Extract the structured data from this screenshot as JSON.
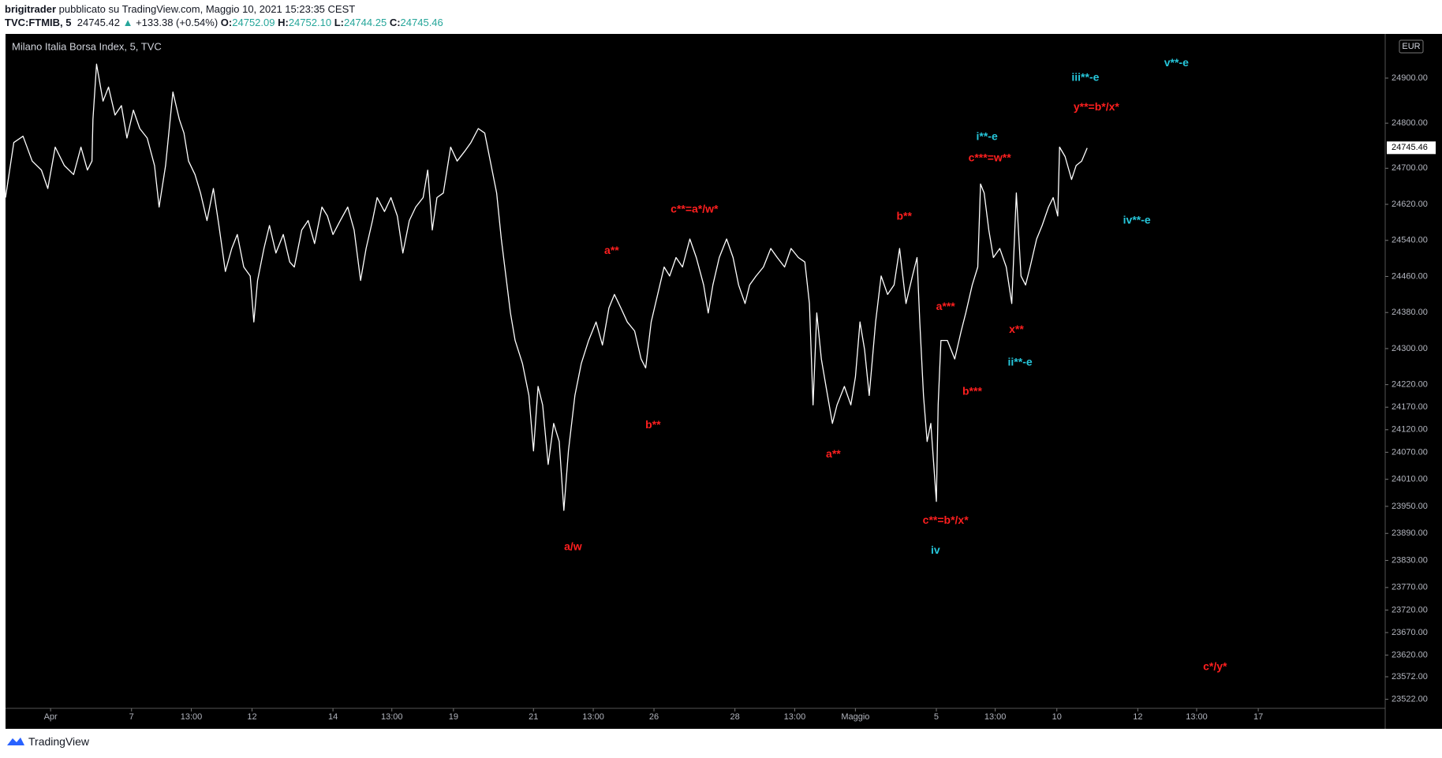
{
  "header": {
    "user": "brigitrader",
    "published": "pubblicato su TradingView.com, Maggio 10, 2021 15:23:35 CEST",
    "symbol": "TVC:FTMIB, 5",
    "price": "24745.42",
    "arrow": "▲",
    "change": "+133.38 (+0.54%)",
    "o_label": "O:",
    "o": "24752.09",
    "h_label": "H:",
    "h": "24752.10",
    "l_label": "L:",
    "l": "24744.25",
    "c_label": "C:",
    "c": "24745.46"
  },
  "footer": {
    "brand": "TradingView"
  },
  "chart_data": {
    "type": "line",
    "title": "Milano Italia Borsa Index, 5, TVC",
    "currency": "EUR",
    "last_price": 24745.46,
    "series": [
      {
        "name": "Milano Italia Borsa Index",
        "color": "#ffffff",
        "x": [
          6,
          15,
          25,
          35,
          45,
          52,
          60,
          70,
          80,
          88,
          95,
          100,
          101,
          105,
          112,
          118,
          125,
          132,
          138,
          145,
          152,
          160,
          168,
          173,
          180,
          188,
          195,
          200,
          205,
          212,
          218,
          225,
          232,
          238,
          245,
          252,
          258,
          265,
          272,
          276,
          280,
          287,
          293,
          300,
          308,
          315,
          320,
          328,
          335,
          342,
          350,
          356,
          362,
          370,
          378,
          385,
          392,
          398,
          405,
          410,
          418,
          425,
          432,
          438,
          445,
          452,
          460,
          465,
          470,
          475,
          482,
          490,
          497,
          505,
          512,
          520,
          527,
          535,
          540,
          545,
          550,
          555,
          560,
          568,
          575,
          580,
          585,
          590,
          596,
          602,
          608,
          613,
          618,
          625,
          632,
          640,
          648,
          655,
          662,
          668,
          675,
          682,
          690,
          697,
          702,
          708,
          715,
          722,
          728,
          735,
          742,
          750,
          757,
          765,
          770,
          775,
          782,
          790,
          797,
          803,
          810,
          815,
          822,
          830,
          838,
          845,
          853,
          860,
          868,
          875,
          880,
          884,
          888,
          893,
          898,
          905,
          910,
          918,
          925,
          930,
          935,
          940,
          945,
          952,
          958,
          965,
          972,
          978,
          985,
          992,
          997,
          1000,
          1004,
          1008,
          1012,
          1018,
          1020,
          1023,
          1030,
          1038,
          1045,
          1050,
          1057,
          1063,
          1066,
          1070,
          1075,
          1080,
          1087,
          1094,
          1100,
          1105,
          1110,
          1115,
          1120,
          1127,
          1133,
          1140,
          1145,
          1150,
          1152,
          1158,
          1165,
          1170,
          1176,
          1182
        ],
        "values": [
          24635,
          24757,
          24771,
          24716,
          24696,
          24655,
          24747,
          24706,
          24686,
          24747,
          24696,
          24716,
          24808,
          24931,
          24849,
          24880,
          24818,
          24839,
          24767,
          24829,
          24788,
          24767,
          24706,
          24614,
          24706,
          24869,
          24808,
          24778,
          24716,
          24686,
          24645,
          24584,
          24655,
          24573,
          24471,
          24522,
          24553,
          24481,
          24461,
          24359,
          24451,
          24522,
          24573,
          24512,
          24553,
          24492,
          24481,
          24563,
          24584,
          24533,
          24614,
          24594,
          24553,
          24584,
          24614,
          24563,
          24451,
          24522,
          24584,
          24635,
          24604,
          24635,
          24594,
          24512,
          24584,
          24614,
          24635,
          24696,
          24563,
          24635,
          24645,
          24747,
          24716,
          24737,
          24757,
          24788,
          24778,
          24696,
          24645,
          24543,
          24461,
          24379,
          24318,
          24267,
          24196,
          24073,
          24216,
          24175,
          24043,
          24134,
          24094,
          23941,
          24073,
          24196,
          24267,
          24318,
          24359,
          24308,
          24390,
          24420,
          24390,
          24359,
          24339,
          24277,
          24257,
          24359,
          24420,
          24481,
          24461,
          24502,
          24481,
          24543,
          24502,
          24441,
          24379,
          24441,
          24502,
          24543,
          24502,
          24441,
          24400,
          24441,
          24461,
          24481,
          24522,
          24502,
          24481,
          24522,
          24502,
          24492,
          24400,
          24175,
          24379,
          24277,
          24216,
          24134,
          24175,
          24216,
          24175,
          24237,
          24359,
          24298,
          24196,
          24359,
          24461,
          24420,
          24441,
          24522,
          24400,
          24461,
          24502,
          24359,
          24196,
          24094,
          24134,
          23961,
          24175,
          24318,
          24318,
          24277,
          24339,
          24379,
          24441,
          24481,
          24665,
          24645,
          24563,
          24502,
          24522,
          24481,
          24400,
          24645,
          24461,
          24441,
          24481,
          24543,
          24573,
          24614,
          24635,
          24594,
          24747,
          24726,
          24675,
          24706,
          24716,
          24745
        ]
      }
    ],
    "xlim": [
      6,
      1506
    ],
    "xticks": [
      {
        "value": 55,
        "label": "Apr"
      },
      {
        "value": 143,
        "label": "7"
      },
      {
        "value": 208,
        "label": "13:00"
      },
      {
        "value": 274,
        "label": "12"
      },
      {
        "value": 362,
        "label": "14"
      },
      {
        "value": 426,
        "label": "13:00"
      },
      {
        "value": 493,
        "label": "19"
      },
      {
        "value": 580,
        "label": "21"
      },
      {
        "value": 645,
        "label": "13:00"
      },
      {
        "value": 711,
        "label": "26"
      },
      {
        "value": 799,
        "label": "28"
      },
      {
        "value": 864,
        "label": "13:00"
      },
      {
        "value": 930,
        "label": "Maggio"
      },
      {
        "value": 1018,
        "label": "5"
      },
      {
        "value": 1082,
        "label": "13:00"
      },
      {
        "value": 1149,
        "label": "10"
      },
      {
        "value": 1237,
        "label": "12"
      },
      {
        "value": 1301,
        "label": "13:00"
      },
      {
        "value": 1368,
        "label": "17"
      }
    ],
    "ylim": [
      23502,
      24998
    ],
    "yticks": [
      {
        "value": 24900,
        "label": "24900.00"
      },
      {
        "value": 24800,
        "label": "24800.00"
      },
      {
        "value": 24700,
        "label": "24700.00"
      },
      {
        "value": 24620,
        "label": "24620.00"
      },
      {
        "value": 24540,
        "label": "24540.00"
      },
      {
        "value": 24460,
        "label": "24460.00"
      },
      {
        "value": 24380,
        "label": "24380.00"
      },
      {
        "value": 24300,
        "label": "24300.00"
      },
      {
        "value": 24220,
        "label": "24220.00"
      },
      {
        "value": 24170,
        "label": "24170.00"
      },
      {
        "value": 24120,
        "label": "24120.00"
      },
      {
        "value": 24070,
        "label": "24070.00"
      },
      {
        "value": 24010,
        "label": "24010.00"
      },
      {
        "value": 23950,
        "label": "23950.00"
      },
      {
        "value": 23890,
        "label": "23890.00"
      },
      {
        "value": 23830,
        "label": "23830.00"
      },
      {
        "value": 23770,
        "label": "23770.00"
      },
      {
        "value": 23720,
        "label": "23720.00"
      },
      {
        "value": 23670,
        "label": "23670.00"
      },
      {
        "value": 23620,
        "label": "23620.00"
      },
      {
        "value": 23572,
        "label": "23572.00"
      },
      {
        "value": 23522,
        "label": "23522.00"
      }
    ],
    "grid": false,
    "annotations": [
      {
        "text": "a**",
        "color": "#ff1f1f",
        "x": 665,
        "y": 24516
      },
      {
        "text": "c**=a*/w*",
        "color": "#ff1f1f",
        "x": 755,
        "y": 24608
      },
      {
        "text": "b**",
        "color": "#ff1f1f",
        "x": 710,
        "y": 24130
      },
      {
        "text": "a/w",
        "color": "#ff1f1f",
        "x": 623,
        "y": 23859
      },
      {
        "text": "a**",
        "color": "#ff1f1f",
        "x": 906,
        "y": 24065
      },
      {
        "text": "b**",
        "color": "#ff1f1f",
        "x": 983,
        "y": 24592
      },
      {
        "text": "c**=b*/x*",
        "color": "#ff1f1f",
        "x": 1028,
        "y": 23918
      },
      {
        "text": "iv",
        "color": "#26c6da",
        "x": 1017,
        "y": 23851
      },
      {
        "text": "a***",
        "color": "#ff1f1f",
        "x": 1028,
        "y": 24392
      },
      {
        "text": "b***",
        "color": "#ff1f1f",
        "x": 1057,
        "y": 24204
      },
      {
        "text": "x**",
        "color": "#ff1f1f",
        "x": 1105,
        "y": 24341
      },
      {
        "text": "ii**-e",
        "color": "#26c6da",
        "x": 1109,
        "y": 24269
      },
      {
        "text": "c***=w**",
        "color": "#ff1f1f",
        "x": 1076,
        "y": 24722
      },
      {
        "text": "i**-e",
        "color": "#26c6da",
        "x": 1073,
        "y": 24769
      },
      {
        "text": "y**=b*/x*",
        "color": "#ff1f1f",
        "x": 1192,
        "y": 24835
      },
      {
        "text": "iii**-e",
        "color": "#26c6da",
        "x": 1180,
        "y": 24900
      },
      {
        "text": "v**-e",
        "color": "#26c6da",
        "x": 1279,
        "y": 24933
      },
      {
        "text": "iv**-e",
        "color": "#26c6da",
        "x": 1236,
        "y": 24584
      },
      {
        "text": "c*/y*",
        "color": "#ff1f1f",
        "x": 1321,
        "y": 23593
      }
    ]
  }
}
